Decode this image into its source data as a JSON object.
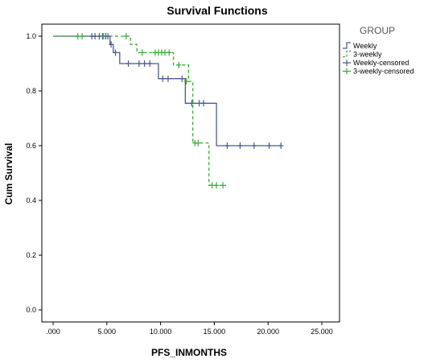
{
  "chart_data": {
    "type": "line",
    "title": "Survival Functions",
    "xlabel": "PFS_INMONTHS",
    "ylabel": "Cum Survival",
    "xlim": [
      0,
      25
    ],
    "ylim": [
      0,
      1.0
    ],
    "x_ticks": [
      0,
      5,
      10,
      15,
      20,
      25
    ],
    "x_tick_labels": [
      ".000",
      "5.000",
      "10.000",
      "15.000",
      "20.000",
      "25.000"
    ],
    "y_ticks": [
      0,
      0.2,
      0.4,
      0.6,
      0.8,
      1.0
    ],
    "y_tick_labels": [
      "0.0",
      "0.2",
      "0.4",
      "0.6",
      "0.8",
      "1.0"
    ],
    "grid": false,
    "legend_title": "GROUP",
    "legend_position": "top-right",
    "series": [
      {
        "name": "Weekly",
        "color": "#4a5a8c",
        "style": "solid",
        "steps": [
          [
            0,
            1.0
          ],
          [
            5.3,
            0.97
          ],
          [
            5.6,
            0.94
          ],
          [
            6.2,
            0.9
          ],
          [
            9.8,
            0.845
          ],
          [
            12.3,
            0.755
          ],
          [
            15.2,
            0.6
          ],
          [
            21.2,
            0.6
          ]
        ]
      },
      {
        "name": "3-weekly",
        "color": "#3aaa3a",
        "style": "dashed",
        "steps": [
          [
            0,
            1.0
          ],
          [
            7.2,
            0.97
          ],
          [
            7.8,
            0.94
          ],
          [
            11.2,
            0.895
          ],
          [
            12.6,
            0.835
          ],
          [
            13.0,
            0.61
          ],
          [
            14.5,
            0.455
          ],
          [
            16.1,
            0.455
          ]
        ]
      },
      {
        "name": "Weekly-censored",
        "color": "#4a5a8c",
        "x": [
          3.6,
          3.9,
          4.3,
          4.6,
          4.9,
          5.1,
          5.4,
          5.8,
          7.0,
          8.0,
          8.5,
          9.0,
          10.2,
          10.7,
          12.0,
          12.9,
          13.6,
          14.0,
          16.2,
          17.4,
          18.7,
          20.1,
          21.2
        ],
        "y": [
          1.0,
          1.0,
          1.0,
          1.0,
          1.0,
          1.0,
          0.97,
          0.94,
          0.9,
          0.9,
          0.9,
          0.9,
          0.845,
          0.845,
          0.845,
          0.755,
          0.755,
          0.755,
          0.6,
          0.6,
          0.6,
          0.6,
          0.6
        ]
      },
      {
        "name": "3-weekly-censored",
        "color": "#3aaa3a",
        "x": [
          2.3,
          2.7,
          4.7,
          6.8,
          8.3,
          9.5,
          9.8,
          10.1,
          10.4,
          10.8,
          11.7,
          12.4,
          13.2,
          13.5,
          14.8,
          15.2,
          15.8
        ],
        "y": [
          1.0,
          1.0,
          1.0,
          1.0,
          0.94,
          0.94,
          0.94,
          0.94,
          0.94,
          0.94,
          0.895,
          0.835,
          0.61,
          0.61,
          0.455,
          0.455,
          0.455
        ]
      }
    ]
  }
}
